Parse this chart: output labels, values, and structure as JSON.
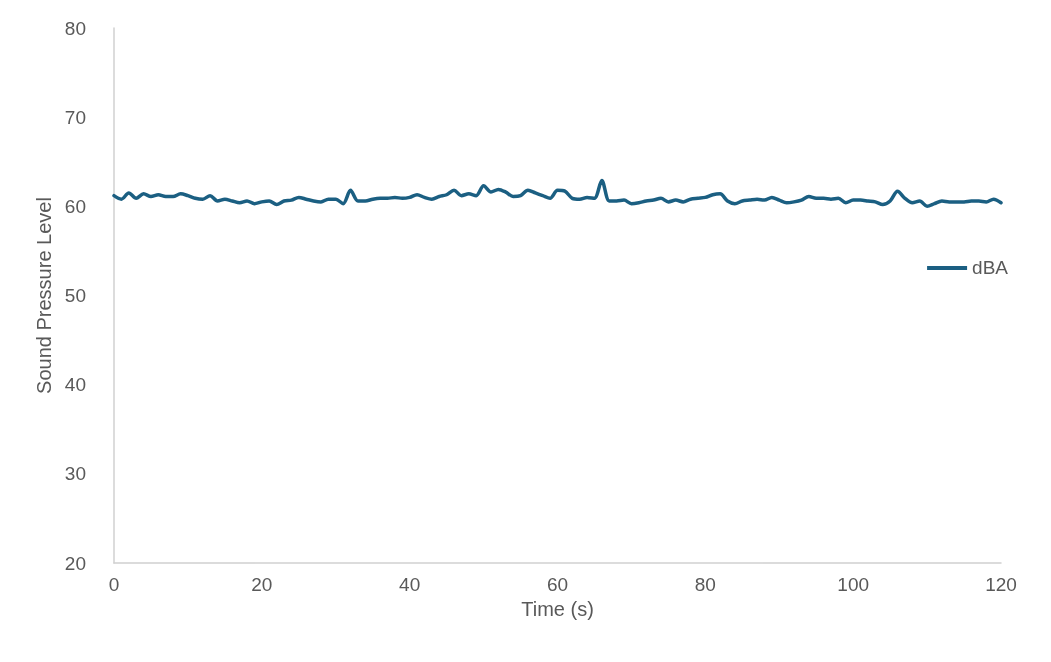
{
  "chart_data": {
    "type": "line",
    "xlabel": "Time (s)",
    "ylabel": "Sound Pressure Level",
    "x": [
      0,
      1,
      2,
      3,
      4,
      5,
      6,
      7,
      8,
      9,
      10,
      11,
      12,
      13,
      14,
      15,
      16,
      17,
      18,
      19,
      20,
      21,
      22,
      23,
      24,
      25,
      26,
      27,
      28,
      29,
      30,
      31,
      32,
      33,
      34,
      35,
      36,
      37,
      38,
      39,
      40,
      41,
      42,
      43,
      44,
      45,
      46,
      47,
      48,
      49,
      50,
      51,
      52,
      53,
      54,
      55,
      56,
      57,
      58,
      59,
      60,
      61,
      62,
      63,
      64,
      65,
      66,
      67,
      68,
      69,
      70,
      71,
      72,
      73,
      74,
      75,
      76,
      77,
      78,
      79,
      80,
      81,
      82,
      83,
      84,
      85,
      86,
      87,
      88,
      89,
      90,
      91,
      92,
      93,
      94,
      95,
      96,
      97,
      98,
      99,
      100,
      101,
      102,
      103,
      104,
      105,
      106,
      107,
      108,
      109,
      110,
      111,
      112,
      113,
      114,
      115,
      116,
      117,
      118,
      119,
      120
    ],
    "series": [
      {
        "name": "dBA",
        "color": "#1b5f82",
        "values": [
          61.2,
          60.8,
          61.5,
          60.9,
          61.4,
          61.1,
          61.3,
          61.1,
          61.1,
          61.4,
          61.2,
          60.9,
          60.8,
          61.2,
          60.6,
          60.8,
          60.6,
          60.4,
          60.6,
          60.3,
          60.5,
          60.6,
          60.2,
          60.6,
          60.7,
          61.0,
          60.8,
          60.6,
          60.5,
          60.8,
          60.8,
          60.3,
          61.8,
          60.6,
          60.6,
          60.8,
          60.9,
          60.9,
          61.0,
          60.9,
          61.0,
          61.3,
          61.0,
          60.8,
          61.1,
          61.3,
          61.8,
          61.2,
          61.4,
          61.2,
          62.3,
          61.6,
          61.9,
          61.6,
          61.1,
          61.2,
          61.8,
          61.5,
          61.2,
          60.9,
          61.8,
          61.7,
          60.9,
          60.8,
          61.0,
          60.9,
          62.9,
          60.6,
          60.6,
          60.7,
          60.3,
          60.4,
          60.6,
          60.7,
          60.9,
          60.5,
          60.7,
          60.5,
          60.8,
          60.9,
          61.0,
          61.3,
          61.4,
          60.6,
          60.3,
          60.6,
          60.7,
          60.8,
          60.7,
          61.0,
          60.7,
          60.4,
          60.5,
          60.7,
          61.1,
          60.9,
          60.9,
          60.8,
          60.9,
          60.4,
          60.7,
          60.7,
          60.6,
          60.5,
          60.2,
          60.6,
          61.7,
          60.9,
          60.4,
          60.6,
          60.0,
          60.3,
          60.6,
          60.5,
          60.5,
          60.5,
          60.6,
          60.6,
          60.5,
          60.8,
          60.4
        ]
      }
    ],
    "xlim": [
      0,
      120
    ],
    "xticks": [
      0,
      20,
      40,
      60,
      80,
      100,
      120
    ],
    "ylim": [
      20,
      80
    ],
    "yticks": [
      20,
      30,
      40,
      50,
      60,
      70,
      80
    ],
    "grid": false,
    "legend": "right",
    "marker": "none",
    "line_style": "solid"
  }
}
